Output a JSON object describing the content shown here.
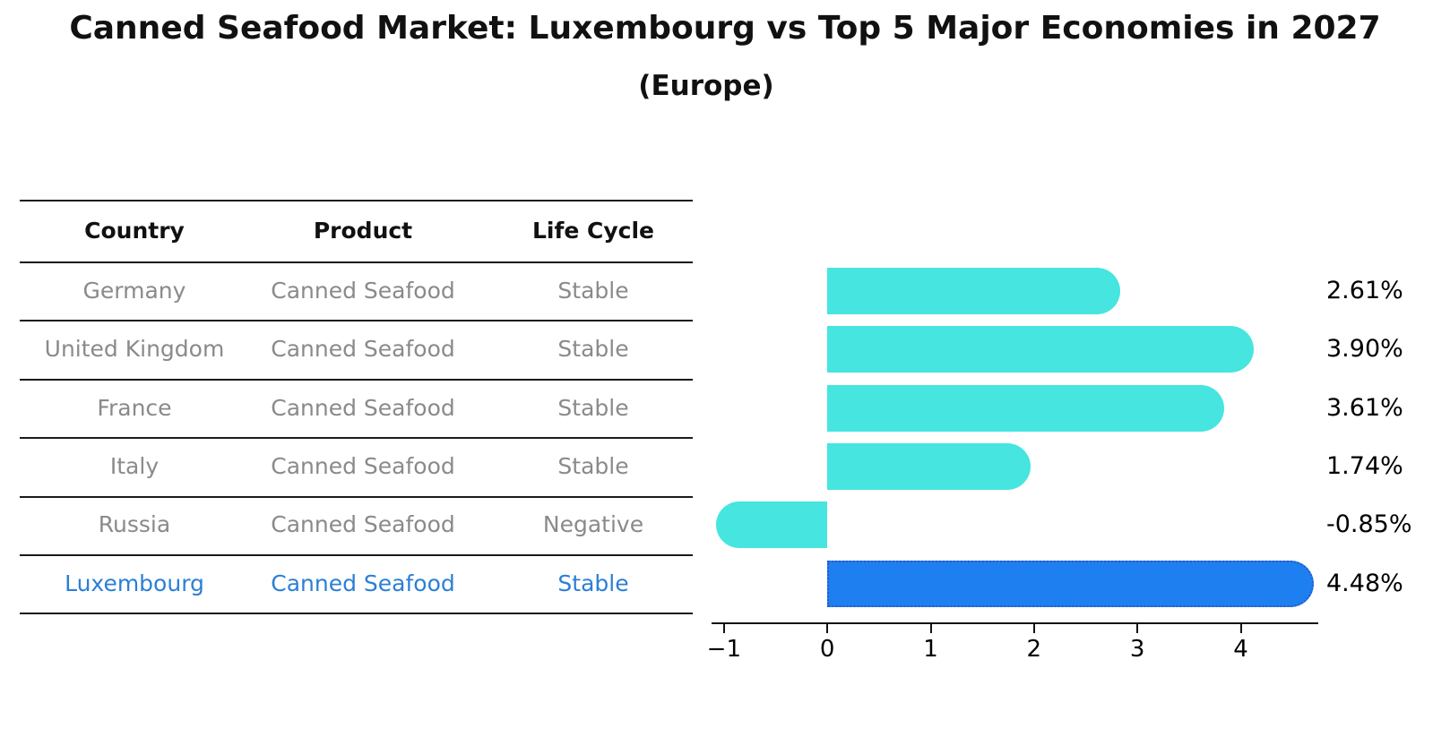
{
  "title": "Canned Seafood Market: Luxembourg vs Top 5 Major Economies in 2027",
  "subtitle": "(Europe)",
  "table": {
    "headers": [
      "Country",
      "Product",
      "Life Cycle"
    ],
    "rows": [
      {
        "country": "Germany",
        "product": "Canned Seafood",
        "life_cycle": "Stable",
        "highlight": false
      },
      {
        "country": "United Kingdom",
        "product": "Canned Seafood",
        "life_cycle": "Stable",
        "highlight": false
      },
      {
        "country": "France",
        "product": "Canned Seafood",
        "life_cycle": "Stable",
        "highlight": false
      },
      {
        "country": "Italy",
        "product": "Canned Seafood",
        "life_cycle": "Stable",
        "highlight": false
      },
      {
        "country": "Russia",
        "product": "Canned Seafood",
        "life_cycle": "Negative",
        "highlight": false
      },
      {
        "country": "Luxembourg",
        "product": "Canned Seafood",
        "life_cycle": "Stable",
        "highlight": true
      }
    ]
  },
  "chart_data": {
    "type": "bar",
    "orientation": "horizontal",
    "title": "Canned Seafood Market: Luxembourg vs Top 5 Major Economies in 2027",
    "subtitle": "(Europe)",
    "categories": [
      "Germany",
      "United Kingdom",
      "France",
      "Italy",
      "Russia",
      "Luxembourg"
    ],
    "values": [
      2.61,
      3.9,
      3.61,
      1.74,
      -0.85,
      4.48
    ],
    "value_labels": [
      "2.61%",
      "3.90%",
      "3.61%",
      "1.74%",
      "-0.85%",
      "4.48%"
    ],
    "highlight_index": 5,
    "xlim": [
      -1.12,
      4.75
    ],
    "xticks": {
      "values": [
        -1,
        0,
        1,
        2,
        3,
        4
      ],
      "labels": [
        "−1",
        "0",
        "1",
        "2",
        "3",
        "4"
      ]
    },
    "grid": false,
    "legend": false,
    "colors": {
      "bar": "#46e5df",
      "highlight_bar": "#1e80f0",
      "highlight_border": "#2e56c9",
      "row_text": "#8a8a8a",
      "highlight_text": "#2b7fd6",
      "axis": "#141414",
      "label_text": "#000000"
    }
  }
}
